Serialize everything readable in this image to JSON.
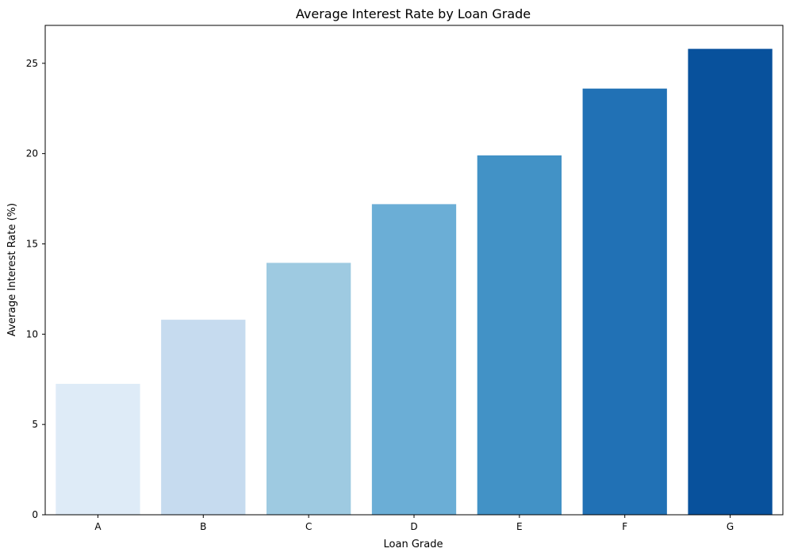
{
  "chart_data": {
    "type": "bar",
    "title": "Average Interest Rate by Loan Grade",
    "xlabel": "Loan Grade",
    "ylabel": "Average Interest Rate (%)",
    "categories": [
      "A",
      "B",
      "C",
      "D",
      "E",
      "F",
      "G"
    ],
    "values": [
      7.25,
      10.8,
      13.95,
      17.2,
      19.9,
      23.6,
      25.8
    ],
    "colors": [
      "#deebf7",
      "#c6dbef",
      "#9ecae1",
      "#6baed6",
      "#4292c6",
      "#2171b5",
      "#08519c"
    ],
    "ylim": [
      0,
      27.1
    ],
    "yticks": [
      0,
      5,
      10,
      15,
      20,
      25
    ],
    "grid": false,
    "legend": "none"
  }
}
